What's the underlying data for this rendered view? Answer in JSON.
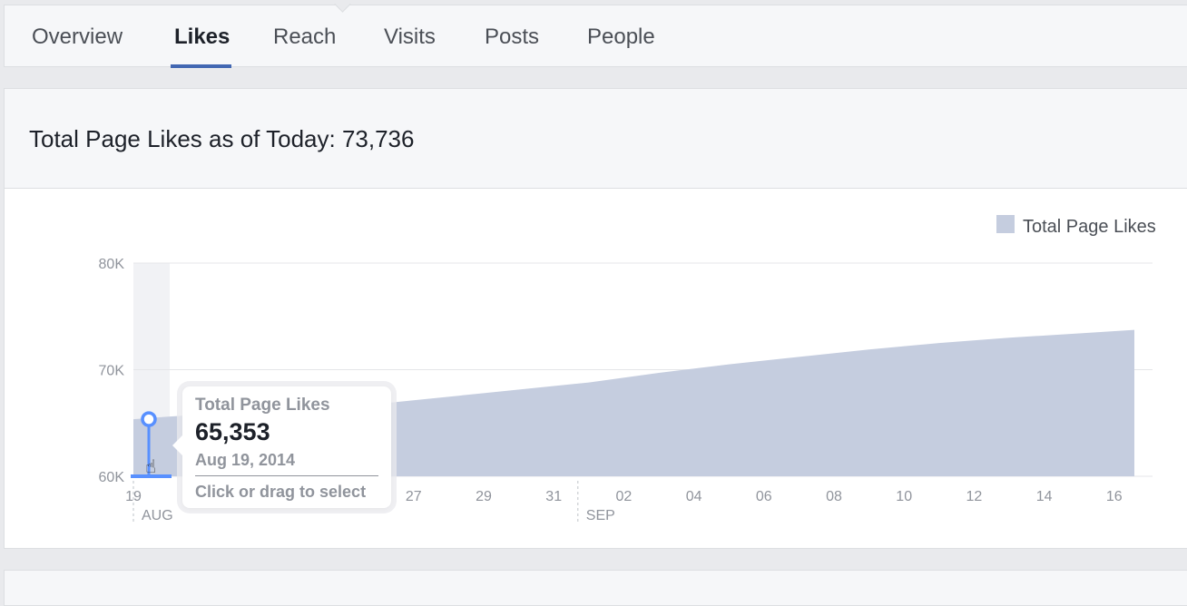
{
  "tabs": [
    {
      "label": "Overview"
    },
    {
      "label": "Likes",
      "active": true
    },
    {
      "label": "Reach"
    },
    {
      "label": "Visits"
    },
    {
      "label": "Posts"
    },
    {
      "label": "People"
    }
  ],
  "card": {
    "title": "Total Page Likes as of Today: 73,736"
  },
  "tooltip": {
    "label": "Total Page Likes",
    "value": "65,353",
    "date": "Aug 19, 2014",
    "hint": "Click or drag to select"
  },
  "colors": {
    "area": "#c5cddf",
    "accent": "#4267b2",
    "marker": "#5890ff"
  },
  "chart_data": {
    "type": "area",
    "legend": {
      "entries": [
        "Total Page Likes"
      ],
      "position": "top-right"
    },
    "y_ticks": [
      "80K",
      "70K",
      "60K"
    ],
    "ylim": [
      60000,
      80000
    ],
    "x_ticks": [
      "19",
      "21",
      "23",
      "25",
      "27",
      "29",
      "31",
      "02",
      "04",
      "06",
      "08",
      "10",
      "12",
      "14",
      "16"
    ],
    "month_labels": [
      {
        "label": "AUG",
        "at": "2014-08-19"
      },
      {
        "label": "SEP",
        "at": "2014-09-01"
      }
    ],
    "grid": true,
    "selected_date": "2014-08-19",
    "series": [
      {
        "name": "Total Page Likes",
        "points": [
          {
            "x": "2014-08-19",
            "y": 65353
          },
          {
            "x": "2014-08-20",
            "y": 65600
          },
          {
            "x": "2014-08-22",
            "y": 66000
          },
          {
            "x": "2014-08-24",
            "y": 66300
          },
          {
            "x": "2014-08-26",
            "y": 66800
          },
          {
            "x": "2014-08-29",
            "y": 67800
          },
          {
            "x": "2014-09-01",
            "y": 68800
          },
          {
            "x": "2014-09-03",
            "y": 69700
          },
          {
            "x": "2014-09-05",
            "y": 70500
          },
          {
            "x": "2014-09-07",
            "y": 71200
          },
          {
            "x": "2014-09-09",
            "y": 71900
          },
          {
            "x": "2014-09-11",
            "y": 72500
          },
          {
            "x": "2014-09-13",
            "y": 73000
          },
          {
            "x": "2014-09-15",
            "y": 73400
          },
          {
            "x": "2014-09-16",
            "y": 73736
          }
        ]
      }
    ]
  }
}
